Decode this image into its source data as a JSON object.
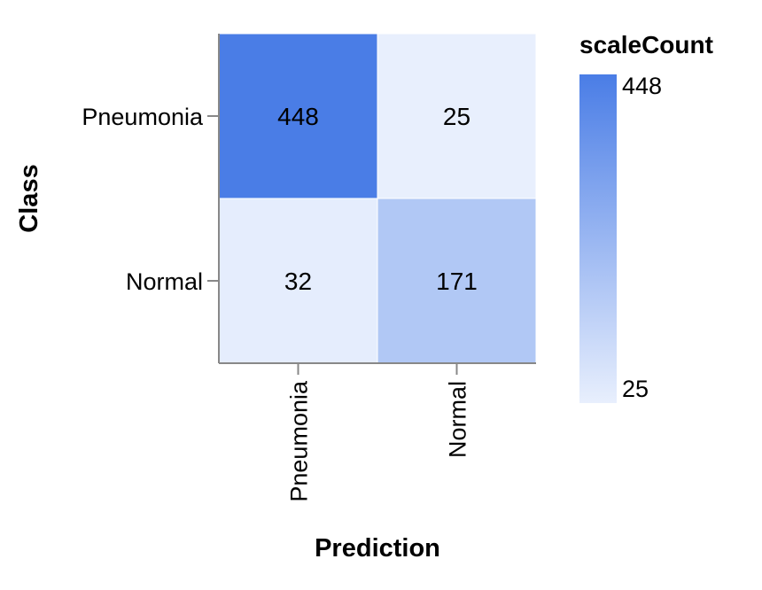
{
  "chart_data": {
    "type": "heatmap",
    "xlabel": "Prediction",
    "ylabel": "Class",
    "x_categories": [
      "Pneumonia",
      "Normal"
    ],
    "y_categories": [
      "Pneumonia",
      "Normal"
    ],
    "cells": [
      {
        "class": "Pneumonia",
        "prediction": "Pneumonia",
        "value": 448
      },
      {
        "class": "Pneumonia",
        "prediction": "Normal",
        "value": 25
      },
      {
        "class": "Normal",
        "prediction": "Pneumonia",
        "value": 32
      },
      {
        "class": "Normal",
        "prediction": "Normal",
        "value": 171
      }
    ],
    "legend": {
      "title": "scaleCount",
      "min": 25,
      "max": 448,
      "placement": "right"
    },
    "colors": {
      "low": "#e8effd",
      "high": "#4a7de6",
      "axis": "#888888"
    }
  }
}
